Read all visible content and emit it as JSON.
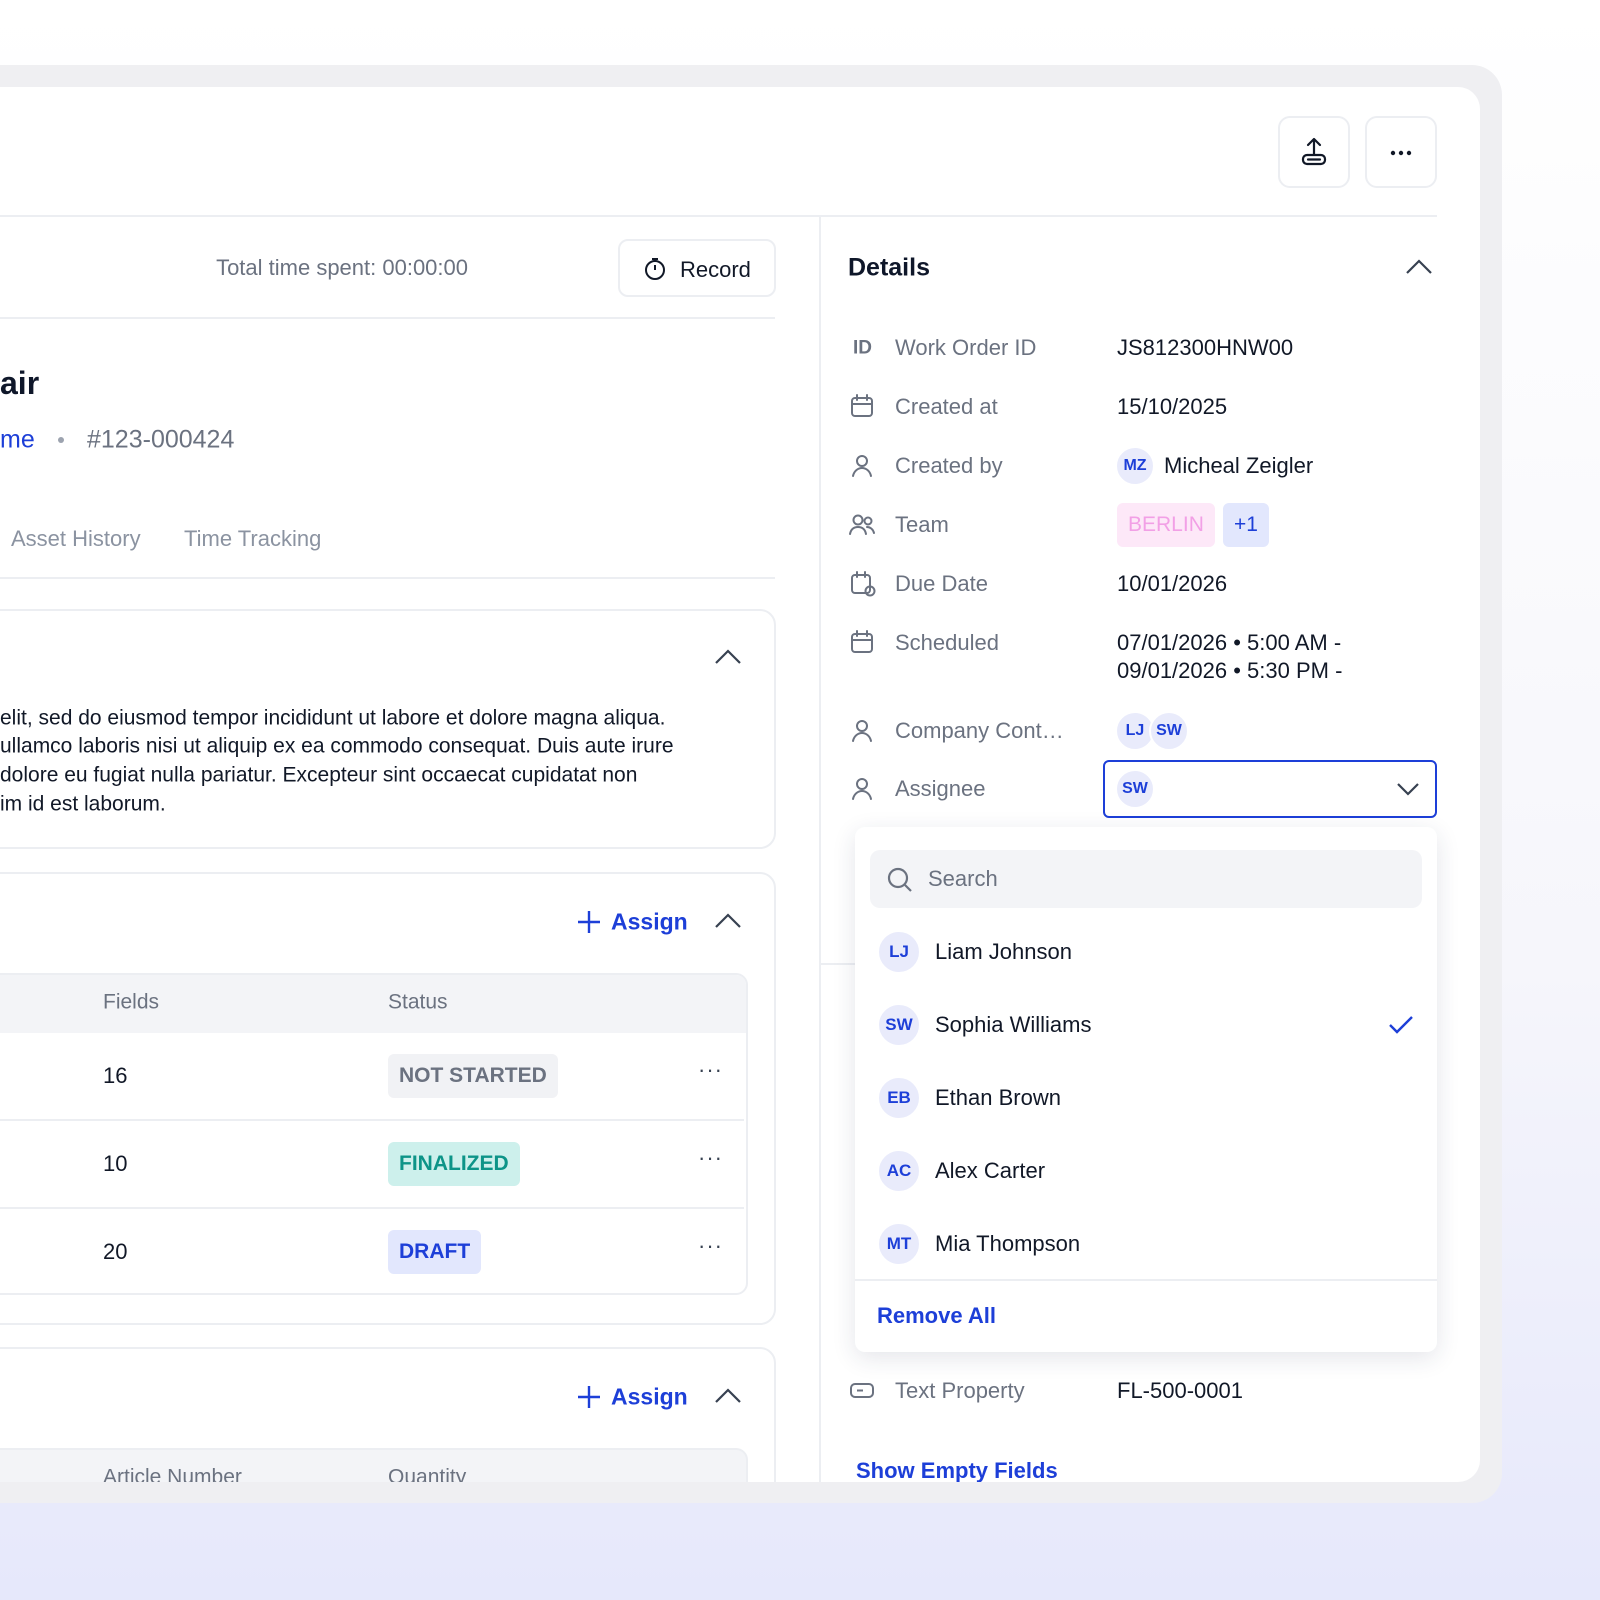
{
  "timer": {
    "total_time": "Total time spent: 00:00:00",
    "record": "Record"
  },
  "work_order": {
    "title": "air",
    "location": "me",
    "number": "#123-000424"
  },
  "tabs": [
    "Asset History",
    "Time Tracking"
  ],
  "description": {
    "lines": [
      "elit, sed do eiusmod tempor incididunt ut labore et dolore magna aliqua.",
      "ullamco laboris nisi ut aliquip ex ea commodo consequat. Duis aute irure",
      "dolore eu fugiat nulla pariatur. Excepteur sint occaecat cupidatat non",
      "im id est laborum."
    ]
  },
  "forms": {
    "assign": "Assign",
    "columns": [
      "Fields",
      "Status"
    ],
    "rows": [
      {
        "fields": 16,
        "status": "NOT STARTED",
        "tone": "gray"
      },
      {
        "fields": 10,
        "status": "FINALIZED",
        "tone": "teal"
      },
      {
        "fields": 20,
        "status": "DRAFT",
        "tone": "blue"
      }
    ]
  },
  "parts": {
    "assign": "Assign",
    "columns": [
      "Article Number",
      "Quantity"
    ]
  },
  "details": {
    "title": "Details",
    "fields": [
      {
        "icon": "ID",
        "label": "Work Order ID",
        "value": "JS812300HNW00"
      },
      {
        "label": "Created at",
        "value": "15/10/2025"
      },
      {
        "label": "Created by",
        "avatars": [
          "MZ"
        ],
        "value": "Micheal Zeigler"
      },
      {
        "label": "Team",
        "tags": [
          "BERLIN",
          "+1"
        ]
      },
      {
        "label": "Due Date",
        "value": "10/01/2026"
      },
      {
        "label": "Scheduled",
        "lines": [
          "07/01/2026 • 5:00 AM -",
          "09/01/2026 • 5:30 PM -"
        ]
      },
      {
        "label": "Company Cont…",
        "avatars": [
          "LJ",
          "SW"
        ]
      },
      {
        "label": "Assignee",
        "avatars": [
          "SW"
        ]
      }
    ],
    "text_property": {
      "label": "Text Property",
      "value": "FL-500-0001"
    },
    "show_empty": "Show Empty Fields"
  },
  "dropdown": {
    "search": "Search",
    "options": [
      {
        "initials": "LJ",
        "name": "Liam Johnson",
        "selected": false
      },
      {
        "initials": "SW",
        "name": "Sophia Williams",
        "selected": true
      },
      {
        "initials": "EB",
        "name": "Ethan Brown",
        "selected": false
      },
      {
        "initials": "AC",
        "name": "Alex Carter",
        "selected": false
      },
      {
        "initials": "MT",
        "name": "Mia Thompson",
        "selected": false
      }
    ],
    "remove_all": "Remove All"
  }
}
